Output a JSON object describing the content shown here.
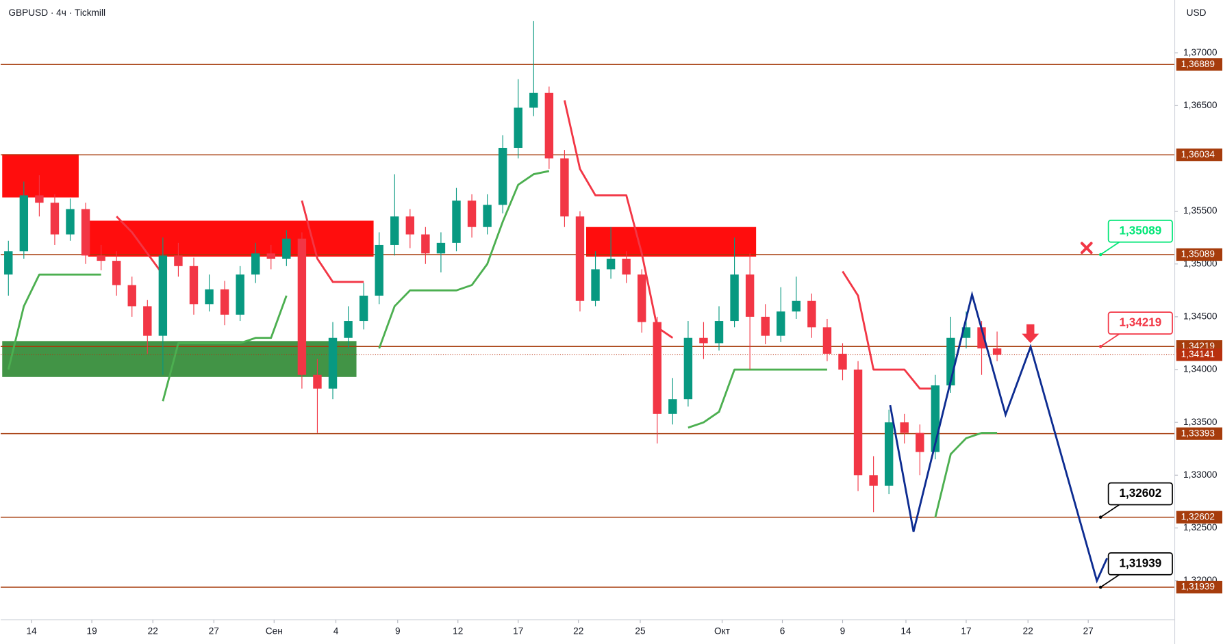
{
  "chart_data": {
    "type": "candlestick",
    "title": "GBPUSD · 4ч · Tickmill",
    "currency": "USD",
    "up_color": "#089981",
    "down_color": "#f23645",
    "open": [
      1.349,
      1.3512,
      1.3565,
      1.3558,
      1.3528,
      1.3552,
      1.3508,
      1.3503,
      1.348,
      1.346,
      1.3432,
      1.3508,
      1.3498,
      1.3462,
      1.3476,
      1.3452,
      1.349,
      1.351,
      1.3505,
      1.3524,
      1.3395,
      1.3382,
      1.343,
      1.3446,
      1.347,
      1.3518,
      1.3545,
      1.3528,
      1.351,
      1.352,
      1.356,
      1.3535,
      1.3556,
      1.361,
      1.3648,
      1.3662,
      1.36,
      1.3545,
      1.3465,
      1.3495,
      1.3505,
      1.349,
      1.3445,
      1.3358,
      1.3372,
      1.343,
      1.3425,
      1.3446,
      1.349,
      1.345,
      1.3432,
      1.3455,
      1.3465,
      1.344,
      1.3415,
      1.34,
      1.33,
      1.329,
      1.335,
      1.334,
      1.3322,
      1.3385,
      1.343,
      1.344,
      1.342
    ],
    "high": [
      1.3522,
      1.3578,
      1.3584,
      1.3566,
      1.3562,
      1.3558,
      1.3518,
      1.3512,
      1.3488,
      1.3466,
      1.3525,
      1.352,
      1.3506,
      1.349,
      1.3484,
      1.3498,
      1.352,
      1.3518,
      1.3532,
      1.353,
      1.341,
      1.3445,
      1.346,
      1.3482,
      1.353,
      1.3585,
      1.3552,
      1.3535,
      1.353,
      1.3572,
      1.3566,
      1.3566,
      1.3622,
      1.3675,
      1.373,
      1.3668,
      1.3608,
      1.355,
      1.3512,
      1.3535,
      1.3512,
      1.3495,
      1.345,
      1.3392,
      1.3446,
      1.3445,
      1.346,
      1.3525,
      1.351,
      1.3462,
      1.3478,
      1.3488,
      1.3472,
      1.3448,
      1.3425,
      1.3408,
      1.3318,
      1.3362,
      1.3358,
      1.3348,
      1.3395,
      1.345,
      1.3455,
      1.3446,
      1.3436
    ],
    "low": [
      1.347,
      1.3505,
      1.3545,
      1.3518,
      1.3522,
      1.35,
      1.3494,
      1.347,
      1.345,
      1.3415,
      1.3395,
      1.3488,
      1.3452,
      1.3455,
      1.3442,
      1.3446,
      1.3482,
      1.3495,
      1.3498,
      1.3382,
      1.334,
      1.3372,
      1.342,
      1.3438,
      1.3462,
      1.3508,
      1.3515,
      1.35,
      1.3492,
      1.3512,
      1.3525,
      1.3528,
      1.3548,
      1.36,
      1.364,
      1.359,
      1.3535,
      1.3455,
      1.346,
      1.3486,
      1.3482,
      1.3435,
      1.333,
      1.3348,
      1.3365,
      1.341,
      1.3418,
      1.344,
      1.34,
      1.3424,
      1.3426,
      1.3448,
      1.343,
      1.3408,
      1.339,
      1.3285,
      1.3265,
      1.3282,
      1.333,
      1.33,
      1.3315,
      1.3378,
      1.342,
      1.3395,
      1.3408
    ],
    "close": [
      1.3512,
      1.3565,
      1.3558,
      1.3528,
      1.3552,
      1.3508,
      1.3503,
      1.348,
      1.346,
      1.3432,
      1.3508,
      1.3498,
      1.3462,
      1.3476,
      1.3452,
      1.349,
      1.351,
      1.3505,
      1.3524,
      1.3395,
      1.3382,
      1.343,
      1.3446,
      1.347,
      1.3518,
      1.3545,
      1.3528,
      1.351,
      1.352,
      1.356,
      1.3535,
      1.3556,
      1.361,
      1.3648,
      1.3662,
      1.36,
      1.3545,
      1.3465,
      1.3495,
      1.3505,
      1.349,
      1.3445,
      1.3358,
      1.3372,
      1.343,
      1.3425,
      1.3446,
      1.349,
      1.345,
      1.3432,
      1.3455,
      1.3465,
      1.344,
      1.3415,
      1.34,
      1.33,
      1.329,
      1.335,
      1.334,
      1.3322,
      1.3385,
      1.343,
      1.344,
      1.342,
      1.3414
    ],
    "support": [
      1.34,
      1.346,
      1.349,
      1.349,
      1.349,
      1.349,
      1.349,
      null,
      null,
      null,
      1.337,
      1.3425,
      1.3425,
      1.3425,
      1.3425,
      1.3425,
      1.343,
      1.343,
      1.347,
      null,
      null,
      null,
      null,
      null,
      1.342,
      1.346,
      1.3475,
      1.3475,
      1.3475,
      1.3475,
      1.348,
      1.35,
      1.354,
      1.3575,
      1.3585,
      1.3588,
      null,
      null,
      null,
      null,
      null,
      null,
      null,
      null,
      1.3345,
      1.335,
      1.336,
      1.34,
      1.34,
      1.34,
      1.34,
      1.34,
      1.34,
      1.34,
      null,
      null,
      null,
      null,
      null,
      null,
      1.326,
      1.332,
      1.3335,
      1.334,
      1.334
    ],
    "resistance": [
      null,
      null,
      null,
      null,
      null,
      null,
      null,
      1.3545,
      1.353,
      1.351,
      1.349,
      null,
      null,
      null,
      null,
      null,
      null,
      null,
      null,
      1.356,
      1.3505,
      1.3483,
      1.3483,
      1.3483,
      null,
      null,
      null,
      null,
      null,
      null,
      null,
      null,
      null,
      null,
      null,
      null,
      1.3655,
      1.359,
      1.3565,
      1.3565,
      1.3565,
      1.351,
      1.344,
      1.343,
      null,
      null,
      null,
      null,
      null,
      null,
      null,
      null,
      null,
      null,
      1.3493,
      1.347,
      1.34,
      1.34,
      1.34,
      1.3382,
      1.3382,
      null,
      null,
      null,
      null
    ],
    "support_color": "#4caf50",
    "resistance_color": "#f23645",
    "xlim": [
      0,
      76
    ],
    "xticks": [
      {
        "value": 2.0,
        "label": "14"
      },
      {
        "value": 5.9,
        "label": "19"
      },
      {
        "value": 9.85,
        "label": "22"
      },
      {
        "value": 13.8,
        "label": "27"
      },
      {
        "value": 17.7,
        "label": "Сен"
      },
      {
        "value": 21.7,
        "label": "4"
      },
      {
        "value": 25.7,
        "label": "9"
      },
      {
        "value": 29.6,
        "label": "12"
      },
      {
        "value": 33.5,
        "label": "17"
      },
      {
        "value": 37.4,
        "label": "22"
      },
      {
        "value": 41.4,
        "label": "25"
      },
      {
        "value": 46.7,
        "label": "Окт"
      },
      {
        "value": 50.6,
        "label": "6"
      },
      {
        "value": 54.5,
        "label": "9"
      },
      {
        "value": 58.6,
        "label": "14"
      },
      {
        "value": 62.5,
        "label": "17"
      },
      {
        "value": 66.5,
        "label": "22"
      },
      {
        "value": 70.4,
        "label": "27"
      }
    ],
    "ylim": [
      1.3163,
      1.375
    ],
    "yticks": [
      {
        "value": 1.37,
        "label": "1,37000"
      },
      {
        "value": 1.365,
        "label": "1,36500"
      },
      {
        "value": 1.355,
        "label": "1,35500"
      },
      {
        "value": 1.35,
        "label": "1,35000"
      },
      {
        "value": 1.345,
        "label": "1,34500"
      },
      {
        "value": 1.34,
        "label": "1,34000"
      },
      {
        "value": 1.335,
        "label": "1,33500"
      },
      {
        "value": 1.33,
        "label": "1,33000"
      },
      {
        "value": 1.325,
        "label": "1,32500"
      },
      {
        "value": 1.32,
        "label": "1,32000"
      }
    ],
    "levels": [
      {
        "value": 1.36889,
        "label": "1,36889"
      },
      {
        "value": 1.36034,
        "label": "1,36034"
      },
      {
        "value": 1.35089,
        "label": "1,35089"
      },
      {
        "value": 1.34219,
        "label": "1,34219"
      },
      {
        "value": 1.33393,
        "label": "1,33393"
      },
      {
        "value": 1.32602,
        "label": "1,32602"
      },
      {
        "value": 1.31939,
        "label": "1,31939"
      }
    ],
    "level_color": "#a63c0c",
    "last_price": {
      "value": 1.34141,
      "label": "1,34141"
    },
    "last_color": "#b8300e",
    "zones": [
      {
        "x": [
          0.1,
          5.05
        ],
        "y": [
          1.3563,
          1.3604
        ],
        "color": "#ff0000"
      },
      {
        "x": [
          5.66,
          24.14
        ],
        "y": [
          1.3507,
          1.3541
        ],
        "color": "#ff0000"
      },
      {
        "x": [
          0.1,
          23.03
        ],
        "y": [
          1.3393,
          1.3427
        ],
        "color": "#388e3c"
      },
      {
        "x": [
          37.9,
          48.9
        ],
        "y": [
          1.3507,
          1.3535
        ],
        "color": "#ff0000"
      }
    ],
    "forecast": {
      "x": [
        57.58,
        59.09,
        62.88,
        65.05,
        66.67,
        70.96,
        71.62
      ],
      "y": [
        1.33662,
        1.32465,
        1.3471,
        1.33573,
        1.34216,
        1.32,
        1.32214
      ],
      "color": "#0d2c91"
    },
    "callouts": [
      {
        "x": 71.2,
        "value": 1.35089,
        "label": "1,35089",
        "color": "#00e676"
      },
      {
        "x": 71.2,
        "value": 1.34219,
        "label": "1,34219",
        "color": "#f23645"
      },
      {
        "x": 71.2,
        "value": 1.32602,
        "label": "1,32602",
        "color": "#000000"
      },
      {
        "x": 71.2,
        "value": 1.31939,
        "label": "1,31939",
        "color": "#000000"
      }
    ]
  }
}
